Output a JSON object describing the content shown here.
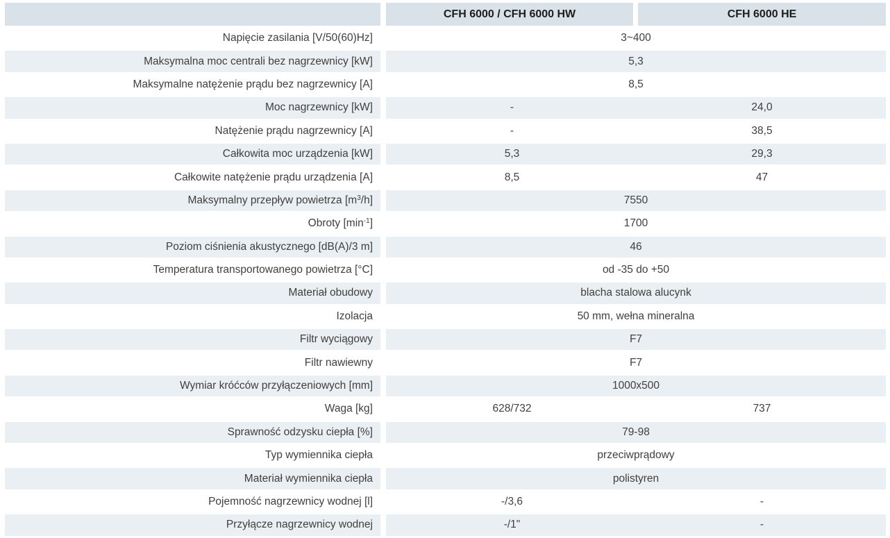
{
  "colors": {
    "header_bg": "#d9e2e8",
    "stripe_bg": "#eaeff3",
    "row_white": "#ffffff",
    "text": "#3f3f3e"
  },
  "header": {
    "corner": "",
    "col1": "CFH 6000 / CFH 6000 HW",
    "col2": "CFH 6000 HE"
  },
  "rows": [
    {
      "label": "Napięcie zasilania [V/50(60)Hz]",
      "value": "3~400"
    },
    {
      "label": "Maksymalna moc centrali bez nagrzewnicy [kW]",
      "value": "5,3"
    },
    {
      "label": "Maksymalne natężenie prądu bez nagrzewnicy [A]",
      "value": "8,5"
    },
    {
      "label": "Moc nagrzewnicy [kW]",
      "values": [
        "-",
        "24,0"
      ]
    },
    {
      "label": "Natężenie prądu nagrzewnicy [A]",
      "values": [
        "-",
        "38,5"
      ]
    },
    {
      "label": "Całkowita moc urządzenia [kW]",
      "values": [
        "5,3",
        "29,3"
      ]
    },
    {
      "label": "Całkowite natężenie prądu urządzenia [A]",
      "values": [
        "8,5",
        "47"
      ]
    },
    {
      "label_parts": [
        {
          "t": "Maksymalny przepływ powietrza [m"
        },
        {
          "t": "3",
          "sup": true
        },
        {
          "t": "/h]"
        }
      ],
      "value": "7550"
    },
    {
      "label_parts": [
        {
          "t": "Obroty [min"
        },
        {
          "t": "-1",
          "sup": true
        },
        {
          "t": "]"
        }
      ],
      "value": "1700"
    },
    {
      "label": "Poziom ciśnienia akustycznego [dB(A)/3 m]",
      "value": "46"
    },
    {
      "label": "Temperatura transportowanego powietrza [°C]",
      "value": "od -35 do +50"
    },
    {
      "label": "Materiał obudowy",
      "value": "blacha stalowa alucynk"
    },
    {
      "label": "Izolacja",
      "value": "50 mm, wełna mineralna"
    },
    {
      "label": "Filtr wyciągowy",
      "value": "F7"
    },
    {
      "label": "Filtr nawiewny",
      "value": "F7"
    },
    {
      "label": "Wymiar króćców przyłączeniowych [mm]",
      "value": "1000x500"
    },
    {
      "label": "Waga [kg]",
      "values": [
        "628/732",
        "737"
      ]
    },
    {
      "label": "Sprawność odzysku ciepła [%]",
      "value": "79-98"
    },
    {
      "label": "Typ wymiennika ciepła",
      "value": "przeciwprądowy"
    },
    {
      "label": "Materiał wymiennika ciepła",
      "value": "polistyren"
    },
    {
      "label": "Pojemność nagrzewnicy wodnej [l]",
      "values": [
        "-/3,6",
        "-"
      ]
    },
    {
      "label": "Przyłącze nagrzewnicy wodnej",
      "values": [
        "-/1\"",
        "-"
      ]
    }
  ]
}
